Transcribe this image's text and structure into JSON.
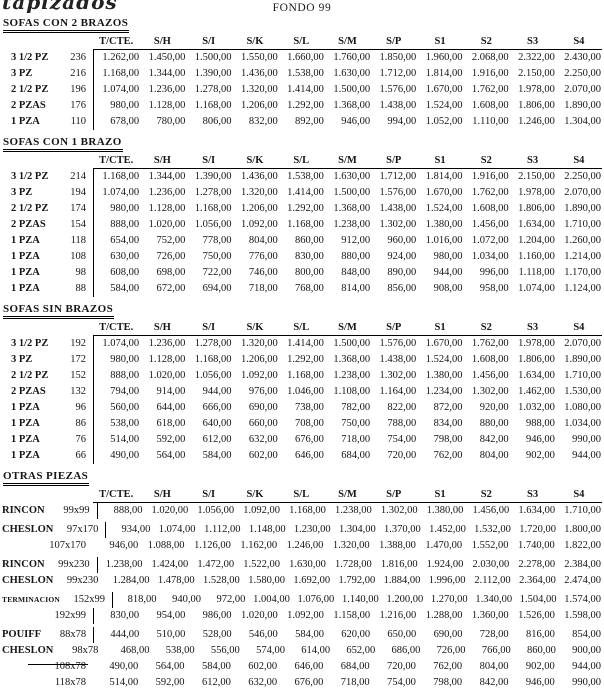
{
  "page": {
    "logo": "tapizados",
    "title": "FONDO 99"
  },
  "columns": [
    "T/CTE.",
    "S/H",
    "S/I",
    "S/K",
    "S/L",
    "S/M",
    "S/P",
    "S1",
    "S2",
    "S3",
    "S4"
  ],
  "sections": [
    {
      "title": "SOFAS CON 2 BRAZOS",
      "align": "left",
      "rows": [
        {
          "label": "3 1/2 PZ",
          "size": "236",
          "divider": true,
          "values": [
            "1.262,00",
            "1.450,00",
            "1.500,00",
            "1.550,00",
            "1.660,00",
            "1.760,00",
            "1.850,00",
            "1.960,00",
            "2.068,00",
            "2.322,00",
            "2.430,00"
          ]
        },
        {
          "label": "3 PZ",
          "size": "216",
          "divider": true,
          "values": [
            "1.168,00",
            "1.344,00",
            "1.390,00",
            "1.436,00",
            "1.538,00",
            "1.630,00",
            "1.712,00",
            "1.814,00",
            "1.916,00",
            "2.150,00",
            "2.250,00"
          ]
        },
        {
          "label": "2 1/2 PZ",
          "size": "196",
          "divider": true,
          "values": [
            "1.074,00",
            "1.236,00",
            "1.278,00",
            "1.320,00",
            "1.414,00",
            "1.500,00",
            "1.576,00",
            "1.670,00",
            "1.762,00",
            "1.978,00",
            "2.070,00"
          ]
        },
        {
          "label": "2 PZAS",
          "size": "176",
          "divider": true,
          "values": [
            "980,00",
            "1.128,00",
            "1.168,00",
            "1.206,00",
            "1.292,00",
            "1.368,00",
            "1.438,00",
            "1.524,00",
            "1.608,00",
            "1.806,00",
            "1.890,00"
          ]
        },
        {
          "label": "1 PZA",
          "size": "110",
          "divider": true,
          "values": [
            "678,00",
            "780,00",
            "806,00",
            "832,00",
            "892,00",
            "946,00",
            "994,00",
            "1.052,00",
            "1.110,00",
            "1.246,00",
            "1.304,00"
          ]
        }
      ]
    },
    {
      "title": "SOFAS CON 1 BRAZO",
      "align": "left",
      "rows": [
        {
          "label": "3 1/2 PZ",
          "size": "214",
          "divider": true,
          "values": [
            "1.168,00",
            "1.344,00",
            "1.390,00",
            "1.436,00",
            "1.538,00",
            "1.630,00",
            "1.712,00",
            "1.814,00",
            "1.916,00",
            "2.150,00",
            "2.250,00"
          ]
        },
        {
          "label": "3 PZ",
          "size": "194",
          "divider": true,
          "values": [
            "1.074,00",
            "1.236,00",
            "1.278,00",
            "1.320,00",
            "1.414,00",
            "1.500,00",
            "1.576,00",
            "1.670,00",
            "1.762,00",
            "1.978,00",
            "2.070,00"
          ]
        },
        {
          "label": "2 1/2 PZ",
          "size": "174",
          "divider": true,
          "values": [
            "980,00",
            "1.128,00",
            "1.168,00",
            "1.206,00",
            "1.292,00",
            "1.368,00",
            "1.438,00",
            "1.524,00",
            "1.608,00",
            "1.806,00",
            "1.890,00"
          ]
        },
        {
          "label": "2 PZAS",
          "size": "154",
          "divider": true,
          "values": [
            "888,00",
            "1.020,00",
            "1.056,00",
            "1.092,00",
            "1.168,00",
            "1.238,00",
            "1.302,00",
            "1.380,00",
            "1.456,00",
            "1.634,00",
            "1.710,00"
          ]
        },
        {
          "label": "1 PZA",
          "size": "118",
          "divider": true,
          "values": [
            "654,00",
            "752,00",
            "778,00",
            "804,00",
            "860,00",
            "912,00",
            "960,00",
            "1.016,00",
            "1.072,00",
            "1.204,00",
            "1.260,00"
          ]
        },
        {
          "label": "1 PZA",
          "size": "108",
          "divider": true,
          "values": [
            "630,00",
            "726,00",
            "750,00",
            "776,00",
            "830,00",
            "880,00",
            "924,00",
            "980,00",
            "1.034,00",
            "1.160,00",
            "1.214,00"
          ]
        },
        {
          "label": "1 PZA",
          "size": "98",
          "divider": true,
          "values": [
            "608,00",
            "698,00",
            "722,00",
            "746,00",
            "800,00",
            "848,00",
            "890,00",
            "944,00",
            "996,00",
            "1.118,00",
            "1.170,00"
          ]
        },
        {
          "label": "1 PZA",
          "size": "88",
          "divider": true,
          "values": [
            "584,00",
            "672,00",
            "694,00",
            "718,00",
            "768,00",
            "814,00",
            "856,00",
            "908,00",
            "958,00",
            "1.074,00",
            "1.124,00"
          ]
        }
      ]
    },
    {
      "title": "SOFAS SIN BRAZOS",
      "align": "left",
      "rows": [
        {
          "label": "3 1/2 PZ",
          "size": "192",
          "divider": true,
          "values": [
            "1.074,00",
            "1.236,00",
            "1.278,00",
            "1.320,00",
            "1.414,00",
            "1.500,00",
            "1.576,00",
            "1.670,00",
            "1.762,00",
            "1.978,00",
            "2.070,00"
          ]
        },
        {
          "label": "3 PZ",
          "size": "172",
          "divider": true,
          "values": [
            "980,00",
            "1.128,00",
            "1.168,00",
            "1.206,00",
            "1.292,00",
            "1.368,00",
            "1.438,00",
            "1.524,00",
            "1.608,00",
            "1.806,00",
            "1.890,00"
          ]
        },
        {
          "label": "2 1/2 PZ",
          "size": "152",
          "divider": true,
          "values": [
            "888,00",
            "1.020,00",
            "1.056,00",
            "1.092,00",
            "1.168,00",
            "1.238,00",
            "1.302,00",
            "1.380,00",
            "1.456,00",
            "1.634,00",
            "1.710,00"
          ]
        },
        {
          "label": "2 PZAS",
          "size": "132",
          "divider": true,
          "values": [
            "794,00",
            "914,00",
            "944,00",
            "976,00",
            "1.046,00",
            "1.108,00",
            "1.164,00",
            "1.234,00",
            "1.302,00",
            "1.462,00",
            "1.530,00"
          ]
        },
        {
          "label": "1 PZA",
          "size": "96",
          "divider": true,
          "values": [
            "560,00",
            "644,00",
            "666,00",
            "690,00",
            "738,00",
            "782,00",
            "822,00",
            "872,00",
            "920,00",
            "1.032,00",
            "1.080,00"
          ]
        },
        {
          "label": "1 PZA",
          "size": "86",
          "divider": true,
          "values": [
            "538,00",
            "618,00",
            "640,00",
            "660,00",
            "708,00",
            "750,00",
            "788,00",
            "834,00",
            "880,00",
            "988,00",
            "1.034,00"
          ]
        },
        {
          "label": "1 PZA",
          "size": "76",
          "divider": true,
          "values": [
            "514,00",
            "592,00",
            "612,00",
            "632,00",
            "676,00",
            "718,00",
            "754,00",
            "798,00",
            "842,00",
            "946,00",
            "990,00"
          ]
        },
        {
          "label": "1 PZA",
          "size": "66",
          "divider": true,
          "values": [
            "490,00",
            "564,00",
            "584,00",
            "602,00",
            "646,00",
            "684,00",
            "720,00",
            "762,00",
            "804,00",
            "902,00",
            "944,00"
          ]
        }
      ]
    },
    {
      "title": "OTRAS PIEZAS",
      "align": "right",
      "rows": [
        {
          "label": "RINCON",
          "size": "99x99",
          "divider": true,
          "gap_before": false,
          "values": [
            "888,00",
            "1.020,00",
            "1.056,00",
            "1.092,00",
            "1.168,00",
            "1.238,00",
            "1.302,00",
            "1.380,00",
            "1.456,00",
            "1.634,00",
            "1.710,00"
          ]
        },
        {
          "label": "CHESLON",
          "size": "97x170",
          "divider": true,
          "gap_before": true,
          "values": [
            "934,00",
            "1.074,00",
            "1.112,00",
            "1.148,00",
            "1.230,00",
            "1.304,00",
            "1.370,00",
            "1.452,00",
            "1.532,00",
            "1.720,00",
            "1.800,00"
          ]
        },
        {
          "label": "",
          "size": "107x170",
          "divider": false,
          "gap_before": false,
          "values": [
            "946,00",
            "1.088,00",
            "1.126,00",
            "1.162,00",
            "1.246,00",
            "1.320,00",
            "1.388,00",
            "1.470,00",
            "1.552,00",
            "1.740,00",
            "1.822,00"
          ]
        },
        {
          "label": "RINCON",
          "size": "99x230",
          "divider": true,
          "gap_before": true,
          "values": [
            "1.238,00",
            "1.424,00",
            "1.472,00",
            "1.522,00",
            "1.630,00",
            "1.728,00",
            "1.816,00",
            "1.924,00",
            "2.030,00",
            "2.278,00",
            "2.384,00"
          ]
        },
        {
          "label": "CHESLON",
          "size": "99x230",
          "divider": false,
          "gap_before": false,
          "values": [
            "1.284,00",
            "1.478,00",
            "1.528,00",
            "1.580,00",
            "1.692,00",
            "1.792,00",
            "1.884,00",
            "1.996,00",
            "2.112,00",
            "2.364,00",
            "2.474,00"
          ]
        },
        {
          "label": "TERMINACION",
          "size": "152x99",
          "divider": true,
          "gap_before": true,
          "small_label": true,
          "values": [
            "818,00",
            "940,00",
            "972,00",
            "1.004,00",
            "1.076,00",
            "1.140,00",
            "1.200,00",
            "1.270,00",
            "1.340,00",
            "1.504,00",
            "1.574,00"
          ]
        },
        {
          "label": "",
          "size": "192x99",
          "divider": true,
          "gap_before": false,
          "values": [
            "830,00",
            "954,00",
            "986,00",
            "1.020,00",
            "1.092,00",
            "1.158,00",
            "1.216,00",
            "1.288,00",
            "1.360,00",
            "1.526,00",
            "1.598,00"
          ]
        },
        {
          "label": "POUIFF",
          "size": "88x78",
          "divider": true,
          "gap_before": true,
          "values": [
            "444,00",
            "510,00",
            "528,00",
            "546,00",
            "584,00",
            "620,00",
            "650,00",
            "690,00",
            "728,00",
            "816,00",
            "854,00"
          ]
        },
        {
          "label": "CHESLON",
          "size": "98x78",
          "divider": false,
          "gap_before": false,
          "values": [
            "468,00",
            "538,00",
            "556,00",
            "574,00",
            "614,00",
            "652,00",
            "686,00",
            "726,00",
            "766,00",
            "860,00",
            "900,00"
          ]
        },
        {
          "label": "",
          "size": "108x78",
          "divider": false,
          "gap_before": false,
          "values": [
            "490,00",
            "564,00",
            "584,00",
            "602,00",
            "646,00",
            "684,00",
            "720,00",
            "762,00",
            "804,00",
            "902,00",
            "944,00"
          ]
        },
        {
          "label": "",
          "size": "118x78",
          "divider": false,
          "gap_before": false,
          "values": [
            "514,00",
            "592,00",
            "612,00",
            "632,00",
            "676,00",
            "718,00",
            "754,00",
            "798,00",
            "842,00",
            "946,00",
            "990,00"
          ]
        }
      ]
    }
  ]
}
